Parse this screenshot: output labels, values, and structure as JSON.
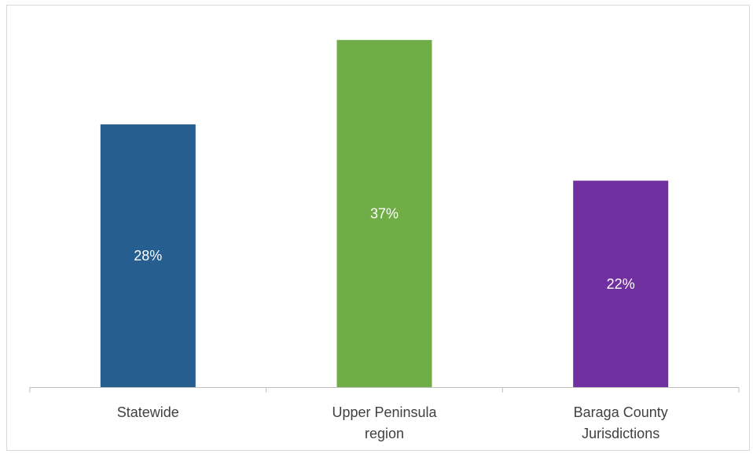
{
  "chart_data": {
    "type": "bar",
    "categories": [
      [
        "Statewide"
      ],
      [
        "Upper Peninsula",
        "region"
      ],
      [
        "Baraga County",
        "Jurisdictions"
      ]
    ],
    "values": [
      28,
      37,
      22
    ],
    "data_labels": [
      "28%",
      "37%",
      "22%"
    ],
    "colors": [
      "#255e8f",
      "#70ad47",
      "#7030a0"
    ],
    "ylim": [
      0,
      40
    ],
    "grid": false,
    "legend": "none"
  }
}
